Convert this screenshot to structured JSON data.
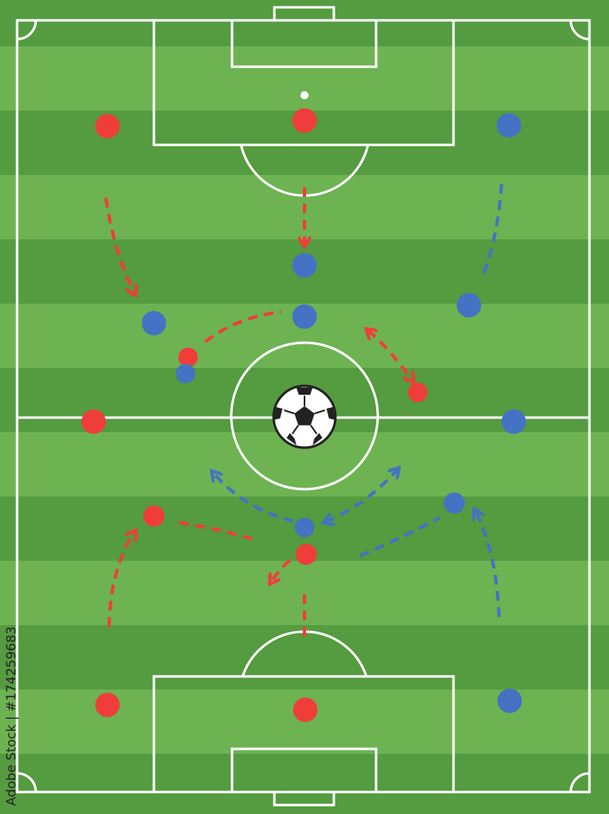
{
  "colors": {
    "grass_dark": "#559b40",
    "grass_light": "#6db352",
    "lines": "#ffffff",
    "team_red": "#ef3e3a",
    "team_blue": "#4472c4"
  },
  "watermark": "Adobe Stock | #174259683",
  "ball_icon": "soccer-ball-icon"
}
